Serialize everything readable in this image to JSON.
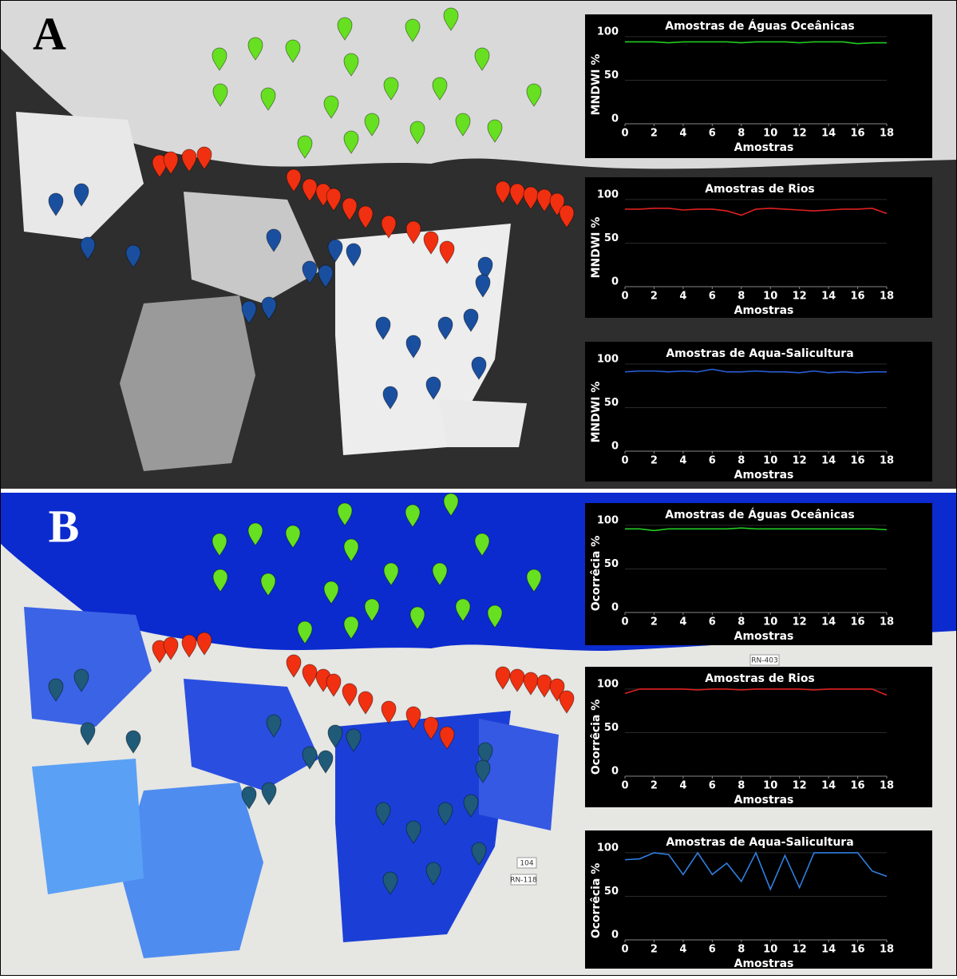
{
  "panels": [
    {
      "label": "A"
    },
    {
      "label": "B"
    }
  ],
  "map_labels": [
    "RN-403",
    "104",
    "RN-118"
  ],
  "chart_data": [
    {
      "type": "line",
      "title": "Amostras de Águas Oceânicas",
      "x_label": "Amostras",
      "y_label": "MNDWI %",
      "x": [
        0,
        1,
        2,
        3,
        4,
        5,
        6,
        7,
        8,
        9,
        10,
        11,
        12,
        13,
        14,
        15,
        16,
        17,
        18
      ],
      "xlim": [
        0,
        18
      ],
      "xticks": [
        0,
        2,
        4,
        6,
        8,
        10,
        12,
        14,
        16,
        18
      ],
      "ylim": [
        0,
        110
      ],
      "yticks": [
        0,
        50,
        100
      ],
      "grid": true,
      "series": [
        {
          "color": "#22cc22",
          "values": [
            94,
            94,
            94,
            93,
            94,
            94,
            94,
            94,
            93,
            94,
            94,
            94,
            93,
            94,
            94,
            94,
            92,
            93,
            93
          ]
        }
      ]
    },
    {
      "type": "line",
      "title": "Amostras de Rios",
      "x_label": "Amostras",
      "y_label": "MNDWI %",
      "x": [
        0,
        1,
        2,
        3,
        4,
        5,
        6,
        7,
        8,
        9,
        10,
        11,
        12,
        13,
        14,
        15,
        16,
        17,
        18
      ],
      "xlim": [
        0,
        18
      ],
      "xticks": [
        0,
        2,
        4,
        6,
        8,
        10,
        12,
        14,
        16,
        18
      ],
      "ylim": [
        0,
        110
      ],
      "yticks": [
        0,
        50,
        100
      ],
      "grid": true,
      "series": [
        {
          "color": "#e02020",
          "values": [
            89,
            89,
            90,
            90,
            88,
            89,
            89,
            87,
            82,
            89,
            90,
            89,
            88,
            87,
            88,
            89,
            89,
            90,
            84
          ]
        }
      ]
    },
    {
      "type": "line",
      "title": "Amostras de Aqua-Salicultura",
      "x_label": "Amostras",
      "y_label": "MNDWI %",
      "x": [
        0,
        1,
        2,
        3,
        4,
        5,
        6,
        7,
        8,
        9,
        10,
        11,
        12,
        13,
        14,
        15,
        16,
        17,
        18
      ],
      "xlim": [
        0,
        18
      ],
      "xticks": [
        0,
        2,
        4,
        6,
        8,
        10,
        12,
        14,
        16,
        18
      ],
      "ylim": [
        0,
        110
      ],
      "yticks": [
        0,
        50,
        100
      ],
      "grid": true,
      "series": [
        {
          "color": "#2a5fd8",
          "values": [
            91,
            92,
            92,
            91,
            92,
            91,
            94,
            91,
            91,
            92,
            91,
            91,
            90,
            92,
            90,
            91,
            90,
            91,
            91
          ]
        }
      ]
    },
    {
      "type": "line",
      "title": "Amostras de Águas Oceânicas",
      "x_label": "Amostras",
      "y_label": "Ocorrêcia %",
      "x": [
        0,
        1,
        2,
        3,
        4,
        5,
        6,
        7,
        8,
        9,
        10,
        11,
        12,
        13,
        14,
        15,
        16,
        17,
        18
      ],
      "xlim": [
        0,
        18
      ],
      "xticks": [
        0,
        2,
        4,
        6,
        8,
        10,
        12,
        14,
        16,
        18
      ],
      "ylim": [
        0,
        110
      ],
      "yticks": [
        0,
        50,
        100
      ],
      "grid": true,
      "series": [
        {
          "color": "#22cc22",
          "values": [
            96,
            96,
            94,
            96,
            96,
            96,
            96,
            96,
            97,
            96,
            96,
            96,
            96,
            96,
            96,
            96,
            96,
            96,
            95
          ]
        }
      ]
    },
    {
      "type": "line",
      "title": "Amostras de Rios",
      "x_label": "Amostras",
      "y_label": "Ocorrêcia %",
      "x": [
        0,
        1,
        2,
        3,
        4,
        5,
        6,
        7,
        8,
        9,
        10,
        11,
        12,
        13,
        14,
        15,
        16,
        17,
        18
      ],
      "xlim": [
        0,
        18
      ],
      "xticks": [
        0,
        2,
        4,
        6,
        8,
        10,
        12,
        14,
        16,
        18
      ],
      "ylim": [
        0,
        110
      ],
      "yticks": [
        0,
        50,
        100
      ],
      "grid": true,
      "series": [
        {
          "color": "#e02020",
          "values": [
            95,
            100,
            100,
            100,
            100,
            99,
            100,
            100,
            99,
            100,
            100,
            100,
            100,
            99,
            100,
            100,
            100,
            100,
            93
          ]
        }
      ]
    },
    {
      "type": "line",
      "title": "Amostras de Aqua-Salicultura",
      "x_label": "Amostras",
      "y_label": "Ocorrêcia %",
      "x": [
        0,
        1,
        2,
        3,
        4,
        5,
        6,
        7,
        8,
        9,
        10,
        11,
        12,
        13,
        14,
        15,
        16,
        17,
        18
      ],
      "xlim": [
        0,
        18
      ],
      "xticks": [
        0,
        2,
        4,
        6,
        8,
        10,
        12,
        14,
        16,
        18
      ],
      "ylim": [
        0,
        110
      ],
      "yticks": [
        0,
        50,
        100
      ],
      "grid": true,
      "series": [
        {
          "color": "#2f7fe0",
          "values": [
            92,
            93,
            100,
            98,
            75,
            100,
            75,
            88,
            67,
            100,
            58,
            97,
            60,
            100,
            100,
            100,
            100,
            79,
            73
          ]
        }
      ]
    }
  ]
}
